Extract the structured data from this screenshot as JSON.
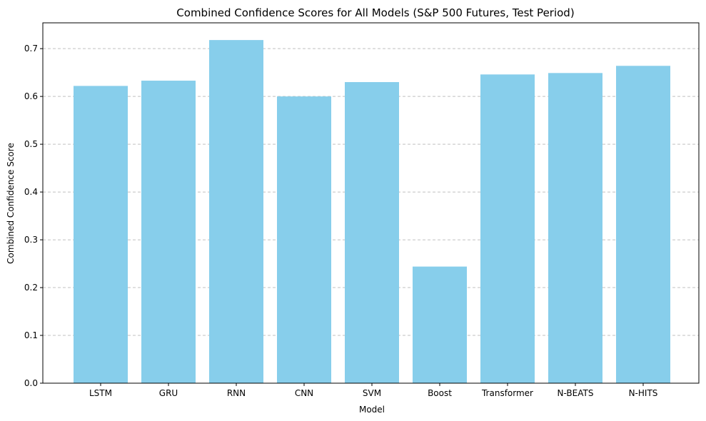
{
  "chart_data": {
    "type": "bar",
    "title": "Combined Confidence Scores for All Models (S&P 500 Futures, Test Period)",
    "xlabel": "Model",
    "ylabel": "Combined Confidence Score",
    "categories": [
      "LSTM",
      "GRU",
      "RNN",
      "CNN",
      "SVM",
      "Boost",
      "Transformer",
      "N-BEATS",
      "N-HITS"
    ],
    "values": [
      0.622,
      0.633,
      0.718,
      0.6,
      0.63,
      0.244,
      0.646,
      0.649,
      0.664
    ],
    "ylim": [
      0,
      0.754
    ],
    "yticks": [
      "0.0",
      "0.1",
      "0.2",
      "0.3",
      "0.4",
      "0.5",
      "0.6",
      "0.7"
    ],
    "grid": "y-dashed",
    "legend": "none",
    "bar_color": "#87ceeb",
    "grid_color": "#c0c0c0"
  }
}
